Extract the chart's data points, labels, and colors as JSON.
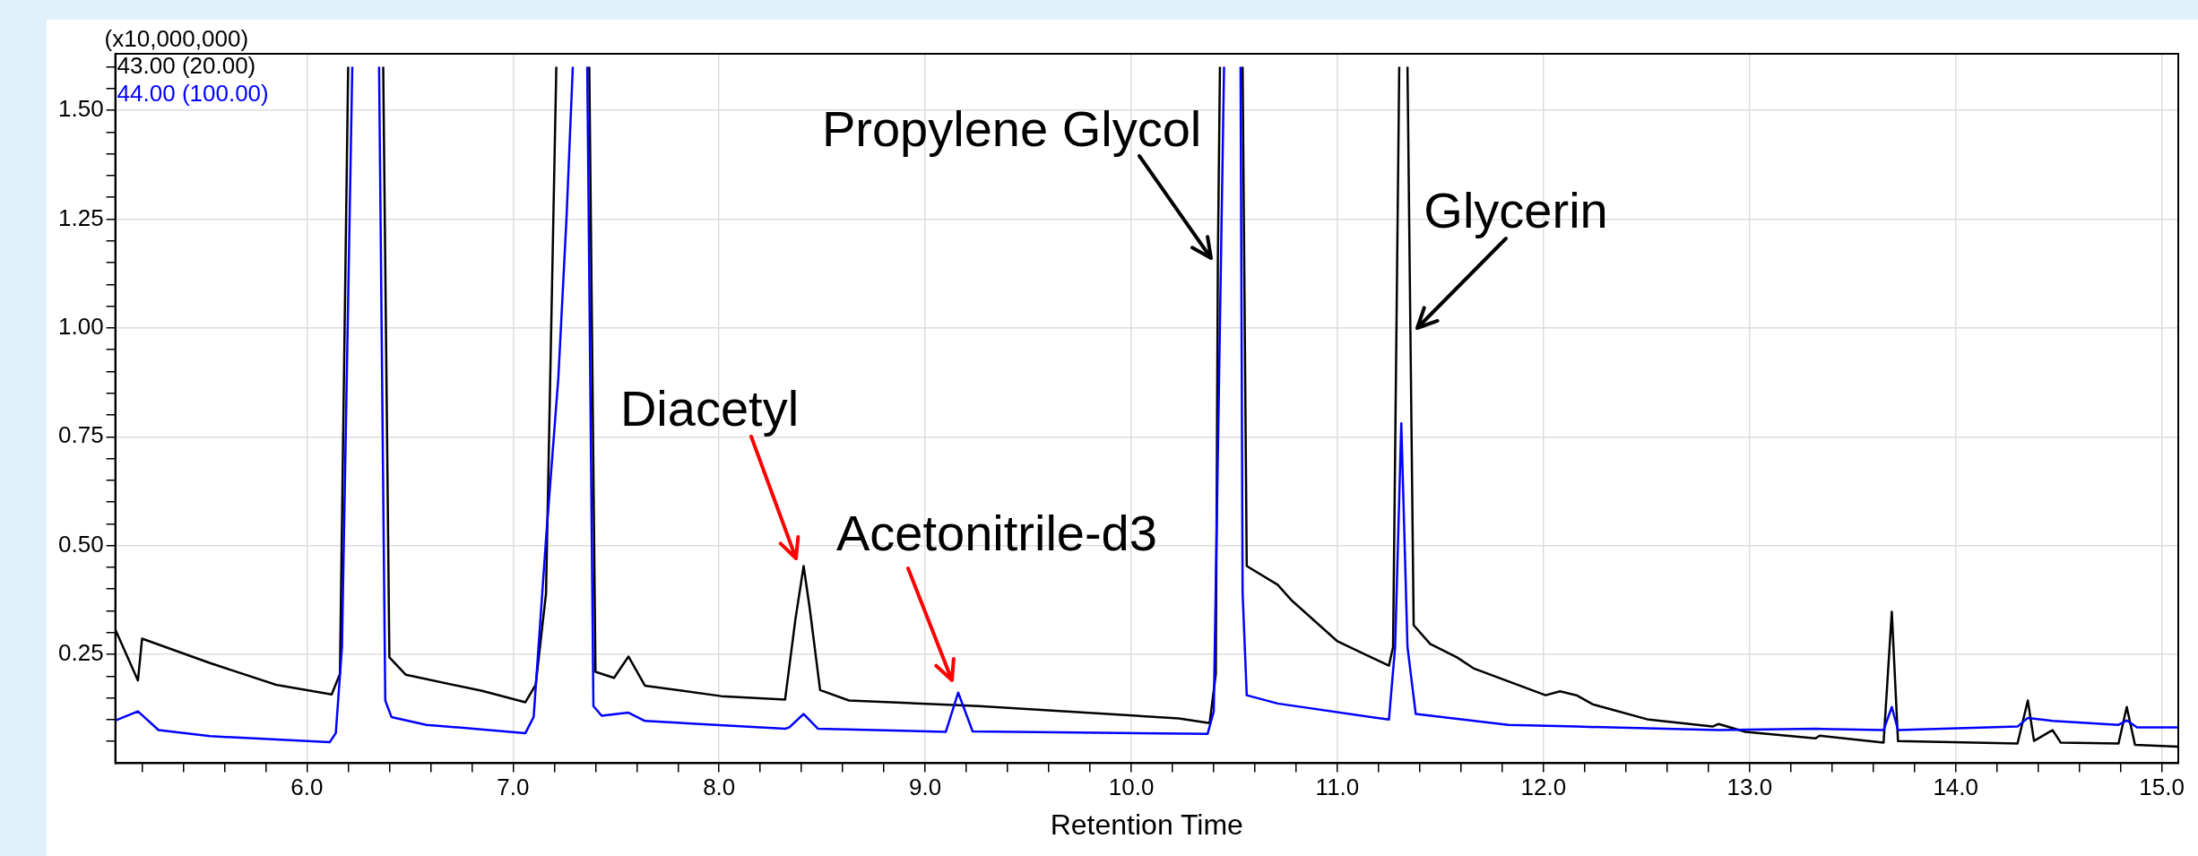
{
  "chart_data": {
    "type": "line",
    "xlabel": "Retention Time",
    "legend": "top left",
    "grid": true,
    "marker": "none",
    "line_style": "solid",
    "xlim": [
      5.07,
      15.08
    ],
    "ylim": [
      0,
      1.63
    ],
    "xticks": [
      {
        "value": 5.2,
        "label": null
      },
      {
        "value": 5.4,
        "label": null
      },
      {
        "value": 5.6,
        "label": null
      },
      {
        "value": 5.8,
        "label": null
      },
      {
        "value": 6,
        "label": "6.0"
      },
      {
        "value": 6.2,
        "label": null
      },
      {
        "value": 6.4,
        "label": null
      },
      {
        "value": 6.6,
        "label": null
      },
      {
        "value": 6.8,
        "label": null
      },
      {
        "value": 7,
        "label": "7.0"
      },
      {
        "value": 7.2,
        "label": null
      },
      {
        "value": 7.4,
        "label": null
      },
      {
        "value": 7.6,
        "label": null
      },
      {
        "value": 7.8,
        "label": null
      },
      {
        "value": 8,
        "label": "8.0"
      },
      {
        "value": 8.2,
        "label": null
      },
      {
        "value": 8.4,
        "label": null
      },
      {
        "value": 8.6,
        "label": null
      },
      {
        "value": 8.8,
        "label": null
      },
      {
        "value": 9,
        "label": "9.0"
      },
      {
        "value": 9.2,
        "label": null
      },
      {
        "value": 9.4,
        "label": null
      },
      {
        "value": 9.6,
        "label": null
      },
      {
        "value": 9.8,
        "label": null
      },
      {
        "value": 10,
        "label": "10.0"
      },
      {
        "value": 10.2,
        "label": null
      },
      {
        "value": 10.4,
        "label": null
      },
      {
        "value": 10.6,
        "label": null
      },
      {
        "value": 10.8,
        "label": null
      },
      {
        "value": 11,
        "label": "11.0"
      },
      {
        "value": 11.2,
        "label": null
      },
      {
        "value": 11.4,
        "label": null
      },
      {
        "value": 11.6,
        "label": null
      },
      {
        "value": 11.8,
        "label": null
      },
      {
        "value": 12,
        "label": "12.0"
      },
      {
        "value": 12.2,
        "label": null
      },
      {
        "value": 12.4,
        "label": null
      },
      {
        "value": 12.6,
        "label": null
      },
      {
        "value": 12.8,
        "label": null
      },
      {
        "value": 13,
        "label": "13.0"
      },
      {
        "value": 13.2,
        "label": null
      },
      {
        "value": 13.4,
        "label": null
      },
      {
        "value": 13.6,
        "label": null
      },
      {
        "value": 13.8,
        "label": null
      },
      {
        "value": 14,
        "label": "14.0"
      },
      {
        "value": 14.2,
        "label": null
      },
      {
        "value": 14.4,
        "label": null
      },
      {
        "value": 14.6,
        "label": null
      },
      {
        "value": 14.8,
        "label": null
      },
      {
        "value": 15,
        "label": "15.0"
      }
    ],
    "yticks": [
      {
        "value": 0.05,
        "label": null
      },
      {
        "value": 0.1,
        "label": null
      },
      {
        "value": 0.15,
        "label": null
      },
      {
        "value": 0.2,
        "label": null
      },
      {
        "value": 0.25,
        "label": "0.25"
      },
      {
        "value": 0.3,
        "label": null
      },
      {
        "value": 0.35,
        "label": null
      },
      {
        "value": 0.4,
        "label": null
      },
      {
        "value": 0.45,
        "label": null
      },
      {
        "value": 0.5,
        "label": "0.50"
      },
      {
        "value": 0.55,
        "label": null
      },
      {
        "value": 0.6,
        "label": null
      },
      {
        "value": 0.65,
        "label": null
      },
      {
        "value": 0.7,
        "label": null
      },
      {
        "value": 0.75,
        "label": "0.75"
      },
      {
        "value": 0.8,
        "label": null
      },
      {
        "value": 0.85,
        "label": null
      },
      {
        "value": 0.9,
        "label": null
      },
      {
        "value": 0.95,
        "label": null
      },
      {
        "value": 1,
        "label": "1.00"
      },
      {
        "value": 1.05,
        "label": null
      },
      {
        "value": 1.1,
        "label": null
      },
      {
        "value": 1.15,
        "label": null
      },
      {
        "value": 1.2,
        "label": null
      },
      {
        "value": 1.25,
        "label": "1.25"
      },
      {
        "value": 1.3,
        "label": null
      },
      {
        "value": 1.35,
        "label": null
      },
      {
        "value": 1.4,
        "label": null
      },
      {
        "value": 1.45,
        "label": null
      },
      {
        "value": 1.5,
        "label": "1.50"
      },
      {
        "value": 1.55,
        "label": null
      },
      {
        "value": 1.6,
        "label": null
      }
    ],
    "annotations": [
      "(x10,000,000)",
      {
        "text": "Diacetyl",
        "x": 8.41,
        "y": 0.453
      },
      {
        "text": "Acetonitrile-d3",
        "x": 9.16,
        "y": 0.162
      },
      {
        "text": "Propylene Glycol",
        "x": 10.42,
        "y": 1.16
      },
      {
        "text": "Glycerin",
        "x": 11.37,
        "y": 1.0
      }
    ],
    "series": [
      {
        "name": "43.00 (20.00)",
        "color": "#000000",
        "x": [
          5.07,
          5.18,
          5.2,
          5.53,
          5.85,
          6.12,
          6.16,
          6.2,
          6.28,
          6.37,
          6.4,
          6.48,
          6.85,
          7.06,
          7.11,
          7.16,
          7.21,
          7.29,
          7.37,
          7.4,
          7.49,
          7.56,
          7.64,
          8.01,
          8.32,
          8.37,
          8.41,
          8.44,
          8.49,
          8.63,
          9.26,
          10.23,
          10.38,
          10.41,
          10.42,
          10.43,
          10.48,
          10.54,
          10.56,
          10.71,
          10.78,
          11.0,
          11.25,
          11.27,
          11.3,
          11.32,
          11.34,
          11.37,
          11.45,
          11.58,
          11.66,
          12.01,
          12.08,
          12.16,
          12.24,
          12.51,
          12.82,
          12.85,
          12.98,
          13.32,
          13.34,
          13.65,
          13.69,
          13.72,
          14.3,
          14.35,
          14.38,
          14.47,
          14.51,
          14.79,
          14.83,
          14.87,
          15.08
        ],
        "values": [
          0.307,
          0.19,
          0.286,
          0.23,
          0.18,
          0.158,
          0.205,
          1.6,
          null,
          1.6,
          0.243,
          0.203,
          0.166,
          0.14,
          0.18,
          0.39,
          1.6,
          null,
          1.6,
          0.21,
          0.196,
          0.245,
          0.178,
          0.154,
          0.146,
          0.33,
          0.453,
          0.354,
          0.168,
          0.144,
          0.131,
          0.103,
          0.092,
          0.205,
          1.16,
          1.6,
          null,
          1.6,
          0.453,
          0.41,
          0.373,
          0.28,
          0.224,
          0.267,
          1.6,
          null,
          1.6,
          0.317,
          0.274,
          0.243,
          0.218,
          0.156,
          0.165,
          0.156,
          0.135,
          0.1,
          0.084,
          0.09,
          0.072,
          0.057,
          0.063,
          0.047,
          0.348,
          0.051,
          0.045,
          0.144,
          0.051,
          0.076,
          0.047,
          0.045,
          0.129,
          0.042,
          0.038
        ]
      },
      {
        "name": "44.00 (100.00)",
        "color": "#0000ff",
        "x": [
          5.07,
          5.18,
          5.28,
          5.53,
          6.11,
          6.14,
          6.17,
          6.22,
          6.28,
          6.35,
          6.38,
          6.41,
          6.58,
          7.06,
          7.1,
          7.16,
          7.22,
          7.26,
          7.29,
          7.32,
          7.36,
          7.39,
          7.43,
          7.56,
          7.64,
          8.32,
          8.34,
          8.41,
          8.48,
          9.1,
          9.16,
          9.23,
          10.37,
          10.4,
          10.45,
          10.49,
          10.53,
          10.54,
          10.56,
          10.71,
          11.25,
          11.28,
          11.31,
          11.34,
          11.38,
          11.83,
          12.16,
          12.85,
          13.32,
          13.65,
          13.69,
          13.72,
          14.3,
          14.35,
          14.47,
          14.79,
          14.83,
          14.88,
          15.08
        ],
        "values": [
          0.098,
          0.119,
          0.076,
          0.062,
          0.048,
          0.069,
          0.267,
          1.6,
          null,
          1.6,
          0.144,
          0.106,
          0.088,
          0.069,
          0.106,
          0.515,
          0.887,
          1.258,
          1.6,
          null,
          1.6,
          0.131,
          0.109,
          0.116,
          0.097,
          0.079,
          0.082,
          0.113,
          0.079,
          0.072,
          0.162,
          0.073,
          0.067,
          0.119,
          1.6,
          null,
          1.6,
          0.391,
          0.156,
          0.137,
          0.1,
          0.267,
          0.781,
          0.267,
          0.113,
          0.088,
          0.084,
          0.076,
          0.079,
          0.076,
          0.129,
          0.076,
          0.084,
          0.104,
          0.097,
          0.088,
          0.098,
          0.082,
          0.082
        ]
      }
    ]
  }
}
